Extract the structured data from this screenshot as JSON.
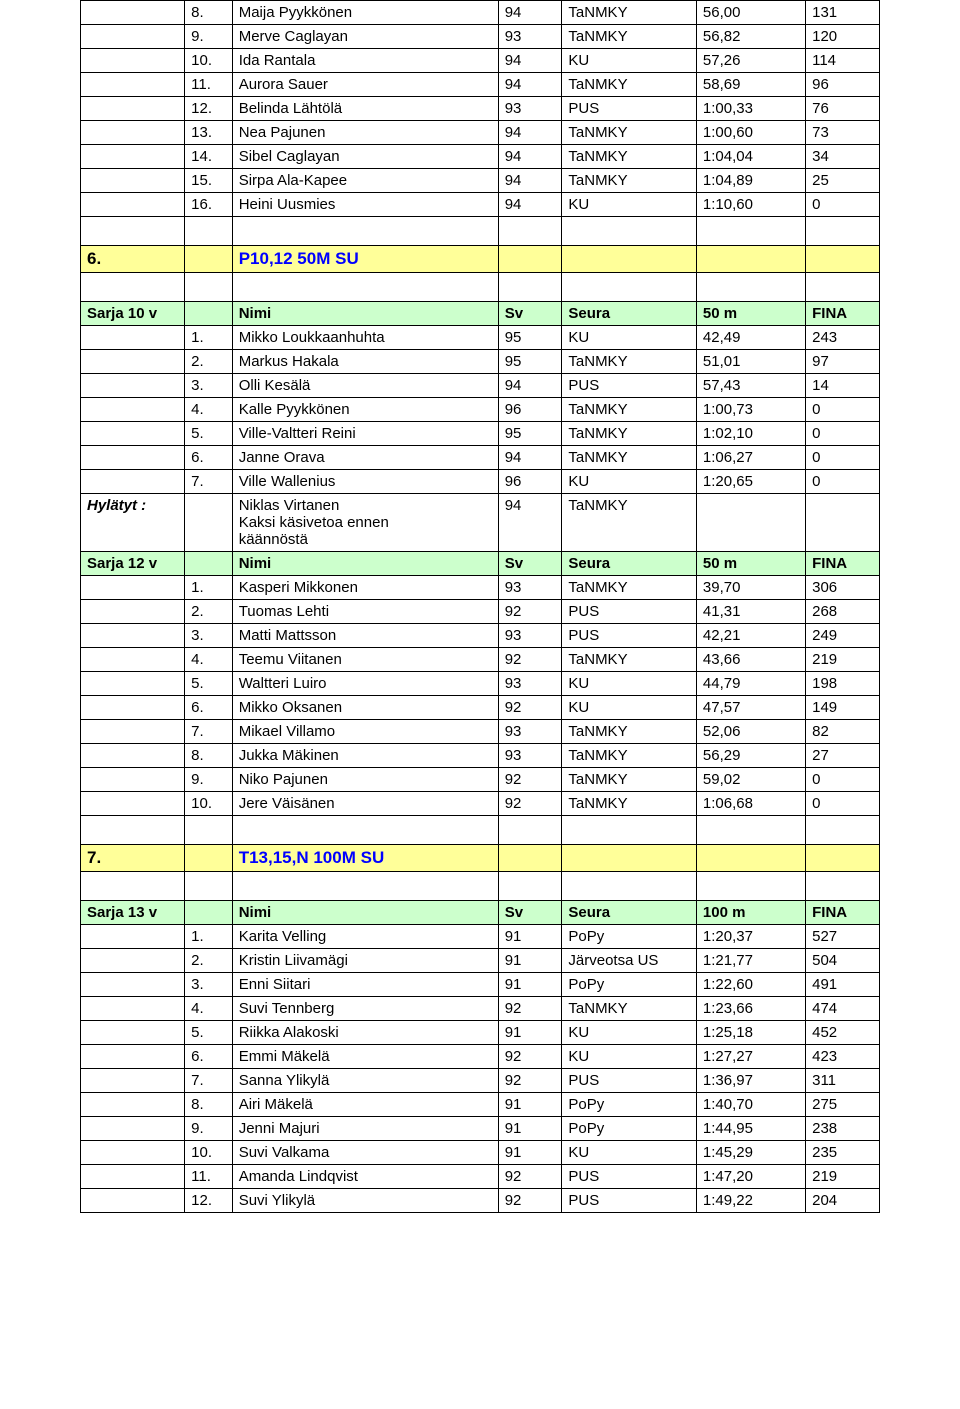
{
  "columns": [
    "",
    "",
    "",
    "Sv",
    "Seura",
    "",
    "FINA"
  ],
  "blocks": [
    {
      "rows": [
        {
          "c": [
            "",
            "8.",
            "Maija Pyykkönen",
            "94",
            "TaNMKY",
            "56,00",
            "131"
          ]
        },
        {
          "c": [
            "",
            "9.",
            "Merve Caglayan",
            "93",
            "TaNMKY",
            "56,82",
            "120"
          ]
        },
        {
          "c": [
            "",
            "10.",
            "Ida Rantala",
            "94",
            "KU",
            "57,26",
            "114"
          ]
        },
        {
          "c": [
            "",
            "11.",
            "Aurora Sauer",
            "94",
            "TaNMKY",
            "58,69",
            "96"
          ]
        },
        {
          "c": [
            "",
            "12.",
            "Belinda Lähtölä",
            "93",
            "PUS",
            "1:00,33",
            "76"
          ]
        },
        {
          "c": [
            "",
            "13.",
            "Nea Pajunen",
            "94",
            "TaNMKY",
            "1:00,60",
            "73"
          ]
        },
        {
          "c": [
            "",
            "14.",
            "Sibel Caglayan",
            "94",
            "TaNMKY",
            "1:04,04",
            "34"
          ]
        },
        {
          "c": [
            "",
            "15.",
            "Sirpa Ala-Kapee",
            "94",
            "TaNMKY",
            "1:04,89",
            "25"
          ]
        },
        {
          "c": [
            "",
            "16.",
            "Heini Uusmies",
            "94",
            "KU",
            "1:10,60",
            "0"
          ]
        }
      ]
    },
    {
      "blank": true
    },
    {
      "section": {
        "num": "6.",
        "title": "P10,12 50M SU"
      }
    },
    {
      "blank": true
    },
    {
      "header": {
        "label": "Sarja 10 v",
        "name": "Nimi",
        "sv": "Sv",
        "seura": "Seura",
        "dist": "50 m",
        "fina": "FINA"
      }
    },
    {
      "rows": [
        {
          "c": [
            "",
            "1.",
            "Mikko Loukkaanhuhta",
            "95",
            "KU",
            "42,49",
            "243"
          ]
        },
        {
          "c": [
            "",
            "2.",
            "Markus Hakala",
            "95",
            "TaNMKY",
            "51,01",
            "97"
          ]
        },
        {
          "c": [
            "",
            "3.",
            "Olli Kesälä",
            "94",
            "PUS",
            "57,43",
            "14"
          ]
        },
        {
          "c": [
            "",
            "4.",
            "Kalle Pyykkönen",
            "96",
            "TaNMKY",
            "1:00,73",
            "0"
          ]
        },
        {
          "c": [
            "",
            "5.",
            "Ville-Valtteri Reini",
            "95",
            "TaNMKY",
            "1:02,10",
            "0"
          ]
        },
        {
          "c": [
            "",
            "6.",
            "Janne Orava",
            "94",
            "TaNMKY",
            "1:06,27",
            "0"
          ]
        },
        {
          "c": [
            "",
            "7.",
            "Ville Wallenius",
            "96",
            "KU",
            "1:20,65",
            "0"
          ]
        }
      ]
    },
    {
      "multiline": {
        "label": "Hylätyt :",
        "name_lines": [
          "Niklas Virtanen",
          "Kaksi käsivetoa ennen",
          "käännöstä"
        ],
        "sv": "94",
        "seura": "TaNMKY"
      }
    },
    {
      "header": {
        "label": "Sarja 12 v",
        "name": "Nimi",
        "sv": "Sv",
        "seura": "Seura",
        "dist": "50 m",
        "fina": "FINA"
      }
    },
    {
      "rows": [
        {
          "c": [
            "",
            "1.",
            "Kasperi Mikkonen",
            "93",
            "TaNMKY",
            "39,70",
            "306"
          ]
        },
        {
          "c": [
            "",
            "2.",
            "Tuomas Lehti",
            "92",
            "PUS",
            "41,31",
            "268"
          ]
        },
        {
          "c": [
            "",
            "3.",
            "Matti Mattsson",
            "93",
            "PUS",
            "42,21",
            "249"
          ]
        },
        {
          "c": [
            "",
            "4.",
            "Teemu Viitanen",
            "92",
            "TaNMKY",
            "43,66",
            "219"
          ]
        },
        {
          "c": [
            "",
            "5.",
            "Waltteri Luiro",
            "93",
            "KU",
            "44,79",
            "198"
          ]
        },
        {
          "c": [
            "",
            "6.",
            "Mikko Oksanen",
            "92",
            "KU",
            "47,57",
            "149"
          ]
        },
        {
          "c": [
            "",
            "7.",
            "Mikael Villamo",
            "93",
            "TaNMKY",
            "52,06",
            "82"
          ]
        },
        {
          "c": [
            "",
            "8.",
            "Jukka Mäkinen",
            "93",
            "TaNMKY",
            "56,29",
            "27"
          ]
        },
        {
          "c": [
            "",
            "9.",
            "Niko Pajunen",
            "92",
            "TaNMKY",
            "59,02",
            "0"
          ]
        },
        {
          "c": [
            "",
            "10.",
            "Jere Väisänen",
            "92",
            "TaNMKY",
            "1:06,68",
            "0"
          ]
        }
      ]
    },
    {
      "blank": true
    },
    {
      "section": {
        "num": "7.",
        "title": "T13,15,N 100M SU"
      }
    },
    {
      "blank": true
    },
    {
      "header": {
        "label": "Sarja 13 v",
        "name": "Nimi",
        "sv": "Sv",
        "seura": "Seura",
        "dist": "100 m",
        "fina": "FINA"
      }
    },
    {
      "rows": [
        {
          "c": [
            "",
            "1.",
            "Karita Velling",
            "91",
            "PoPy",
            "1:20,37",
            "527"
          ]
        },
        {
          "c": [
            "",
            "2.",
            "Kristin Liivamägi",
            "91",
            "Järveotsa US",
            "1:21,77",
            "504"
          ]
        },
        {
          "c": [
            "",
            "3.",
            "Enni Siitari",
            "91",
            "PoPy",
            "1:22,60",
            "491"
          ]
        },
        {
          "c": [
            "",
            "4.",
            "Suvi Tennberg",
            "92",
            "TaNMKY",
            "1:23,66",
            "474"
          ]
        },
        {
          "c": [
            "",
            "5.",
            "Riikka Alakoski",
            "91",
            "KU",
            "1:25,18",
            "452"
          ]
        },
        {
          "c": [
            "",
            "6.",
            "Emmi Mäkelä",
            "92",
            "KU",
            "1:27,27",
            "423"
          ]
        },
        {
          "c": [
            "",
            "7.",
            "Sanna Ylikylä",
            "92",
            "PUS",
            "1:36,97",
            "311"
          ]
        },
        {
          "c": [
            "",
            "8.",
            "Airi Mäkelä",
            "91",
            "PoPy",
            "1:40,70",
            "275"
          ]
        },
        {
          "c": [
            "",
            "9.",
            "Jenni Majuri",
            "91",
            "PoPy",
            "1:44,95",
            "238"
          ]
        },
        {
          "c": [
            "",
            "10.",
            "Suvi Valkama",
            "91",
            "KU",
            "1:45,29",
            "235"
          ]
        },
        {
          "c": [
            "",
            "11.",
            "Amanda Lindqvist",
            "92",
            "PUS",
            "1:47,20",
            "219"
          ]
        },
        {
          "c": [
            "",
            "12.",
            "Suvi Ylikylä",
            "92",
            "PUS",
            "1:49,22",
            "204"
          ]
        }
      ]
    }
  ]
}
